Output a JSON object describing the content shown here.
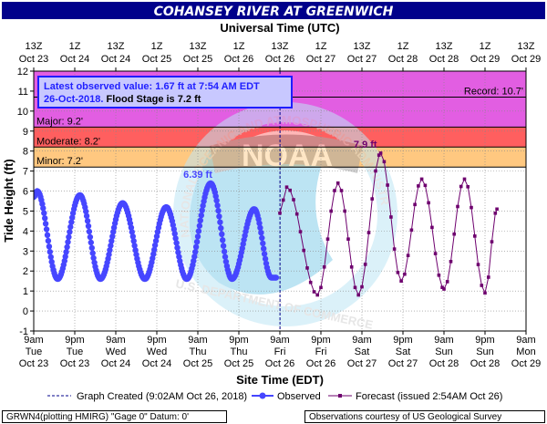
{
  "chart_data": {
    "type": "line",
    "title": "COHANSEY RIVER AT GREENWICH",
    "top_axis_title": "Universal Time (UTC)",
    "xlabel": "Site Time (EDT)",
    "ylabel": "Tide Height (ft)",
    "ylim": [
      -1,
      12
    ],
    "yticks": [
      -1,
      0,
      1,
      2,
      3,
      4,
      5,
      6,
      7,
      8,
      9,
      10,
      11,
      12
    ],
    "xlim_hours": [
      9,
      153
    ],
    "top_ticks": [
      {
        "t": "2018-10-23 09:00",
        "l1": "13Z",
        "l2": "Oct 23"
      },
      {
        "t": "2018-10-23 21:00",
        "l1": "1Z",
        "l2": "Oct 24"
      },
      {
        "t": "2018-10-24 09:00",
        "l1": "13Z",
        "l2": "Oct 24"
      },
      {
        "t": "2018-10-24 21:00",
        "l1": "1Z",
        "l2": "Oct 25"
      },
      {
        "t": "2018-10-25 09:00",
        "l1": "13Z",
        "l2": "Oct 25"
      },
      {
        "t": "2018-10-25 21:00",
        "l1": "1Z",
        "l2": "Oct 26"
      },
      {
        "t": "2018-10-26 09:00",
        "l1": "13Z",
        "l2": "Oct 26"
      },
      {
        "t": "2018-10-26 21:00",
        "l1": "1Z",
        "l2": "Oct 27"
      },
      {
        "t": "2018-10-27 09:00",
        "l1": "13Z",
        "l2": "Oct 27"
      },
      {
        "t": "2018-10-27 21:00",
        "l1": "1Z",
        "l2": "Oct 28"
      },
      {
        "t": "2018-10-28 09:00",
        "l1": "13Z",
        "l2": "Oct 28"
      },
      {
        "t": "2018-10-28 21:00",
        "l1": "1Z",
        "l2": "Oct 29"
      },
      {
        "t": "2018-10-29 09:00",
        "l1": "13Z",
        "l2": "Oct 29"
      }
    ],
    "bottom_ticks": [
      {
        "t": "2018-10-23 09:00",
        "l1": "9am",
        "l2": "Tue",
        "l3": "Oct 23"
      },
      {
        "t": "2018-10-23 21:00",
        "l1": "9pm",
        "l2": "Tue",
        "l3": "Oct 23"
      },
      {
        "t": "2018-10-24 09:00",
        "l1": "9am",
        "l2": "Wed",
        "l3": "Oct 24"
      },
      {
        "t": "2018-10-24 21:00",
        "l1": "9pm",
        "l2": "Wed",
        "l3": "Oct 24"
      },
      {
        "t": "2018-10-25 09:00",
        "l1": "9am",
        "l2": "Thu",
        "l3": "Oct 25"
      },
      {
        "t": "2018-10-25 21:00",
        "l1": "9pm",
        "l2": "Thu",
        "l3": "Oct 25"
      },
      {
        "t": "2018-10-26 09:00",
        "l1": "9am",
        "l2": "Fri",
        "l3": "Oct 26"
      },
      {
        "t": "2018-10-26 21:00",
        "l1": "9pm",
        "l2": "Fri",
        "l3": "Oct 26"
      },
      {
        "t": "2018-10-27 09:00",
        "l1": "9am",
        "l2": "Sat",
        "l3": "Oct 27"
      },
      {
        "t": "2018-10-27 21:00",
        "l1": "9pm",
        "l2": "Sat",
        "l3": "Oct 27"
      },
      {
        "t": "2018-10-28 09:00",
        "l1": "9am",
        "l2": "Sun",
        "l3": "Oct 28"
      },
      {
        "t": "2018-10-28 21:00",
        "l1": "9pm",
        "l2": "Sun",
        "l3": "Oct 28"
      },
      {
        "t": "2018-10-29 09:00",
        "l1": "9am",
        "l2": "Mon",
        "l3": "Oct 29"
      }
    ],
    "flood_categories": [
      {
        "name": "Minor",
        "label": "Minor:  7.2'",
        "from": 7.2,
        "to": 8.2,
        "color": "#ffc880"
      },
      {
        "name": "Moderate",
        "label": "Moderate:  8.2'",
        "from": 8.2,
        "to": 9.2,
        "color": "#ff5f5f"
      },
      {
        "name": "Major",
        "label": "Major:  9.2'",
        "from": 9.2,
        "to": 12,
        "color": "#e25ee2"
      }
    ],
    "record": {
      "label": "Record:  10.7'",
      "value": 10.7
    },
    "latest_box": {
      "line1": "Latest observed value: 1.67 ft at 7:54 AM EDT",
      "line2a": "26-Oct-2018.",
      "line2b": " Flood Stage is 7.2 ft"
    },
    "annotations": [
      {
        "text": "6.39 ft",
        "t": "2018-10-25 09:00",
        "value": 6.39
      },
      {
        "text": "7.9 ft",
        "t": "2018-10-27 10:00",
        "value": 7.9
      }
    ],
    "graph_created_t": "2018-10-26 09:02",
    "series": [
      {
        "name": "Observed",
        "color": "#4646ff",
        "observed_tides": [
          {
            "t": "2018-10-23 09:00",
            "v": 5.7,
            "type": "start"
          },
          {
            "t": "2018-10-23 10:00",
            "v": 6.0,
            "type": "high"
          },
          {
            "t": "2018-10-23 16:00",
            "v": 1.6,
            "type": "low"
          },
          {
            "t": "2018-10-23 22:30",
            "v": 5.8,
            "type": "high"
          },
          {
            "t": "2018-10-24 04:30",
            "v": 1.6,
            "type": "low"
          },
          {
            "t": "2018-10-24 11:00",
            "v": 5.4,
            "type": "high"
          },
          {
            "t": "2018-10-24 17:30",
            "v": 1.6,
            "type": "low"
          },
          {
            "t": "2018-10-24 23:45",
            "v": 5.2,
            "type": "high"
          },
          {
            "t": "2018-10-25 05:45",
            "v": 1.6,
            "type": "low"
          },
          {
            "t": "2018-10-25 12:45",
            "v": 6.39,
            "type": "high"
          },
          {
            "t": "2018-10-25 19:00",
            "v": 1.6,
            "type": "low"
          },
          {
            "t": "2018-10-26 01:30",
            "v": 5.1,
            "type": "high"
          },
          {
            "t": "2018-10-26 06:30",
            "v": 1.67,
            "type": "low"
          },
          {
            "t": "2018-10-26 07:54",
            "v": 1.67,
            "type": "end"
          }
        ]
      },
      {
        "name": "Forecast (issued 2:54AM Oct 26)",
        "color": "#6e006e",
        "forecast_tides": [
          {
            "t": "2018-10-26 09:00",
            "v": 4.9,
            "type": "start"
          },
          {
            "t": "2018-10-26 11:00",
            "v": 6.2,
            "type": "high"
          },
          {
            "t": "2018-10-26 20:00",
            "v": 0.8,
            "type": "low"
          },
          {
            "t": "2018-10-27 02:00",
            "v": 6.4,
            "type": "high"
          },
          {
            "t": "2018-10-27 08:00",
            "v": 0.8,
            "type": "low"
          },
          {
            "t": "2018-10-27 14:30",
            "v": 7.9,
            "type": "high"
          },
          {
            "t": "2018-10-27 20:30",
            "v": 1.5,
            "type": "low"
          },
          {
            "t": "2018-10-28 02:30",
            "v": 6.6,
            "type": "high"
          },
          {
            "t": "2018-10-28 09:00",
            "v": 1.1,
            "type": "low"
          },
          {
            "t": "2018-10-28 15:00",
            "v": 6.6,
            "type": "high"
          },
          {
            "t": "2018-10-28 21:00",
            "v": 0.9,
            "type": "low"
          },
          {
            "t": "2018-10-29 00:30",
            "v": 5.1,
            "type": "end"
          }
        ]
      }
    ]
  },
  "legend": {
    "created": "Graph Created (9:02AM Oct 26, 2018)",
    "observed": "Observed",
    "forecast": "Forecast (issued 2:54AM Oct 26)"
  },
  "footer": {
    "left": "GRWN4(plotting HMIRG) \"Gage 0\" Datum: 0'",
    "right": "Observations courtesy of US Geological Survey"
  },
  "watermark": {
    "logo": "NOAA",
    "arc_text": "NATIONAL OCEANIC AND ATMOSPHERIC ADMINISTRATION",
    "bottom_text": "U.S. DEPARTMENT OF COMMERCE"
  },
  "colors": {
    "title_bg": "#00008b",
    "observed": "#4646ff",
    "forecast": "#6e006e",
    "watermark": "#87ceeb"
  }
}
